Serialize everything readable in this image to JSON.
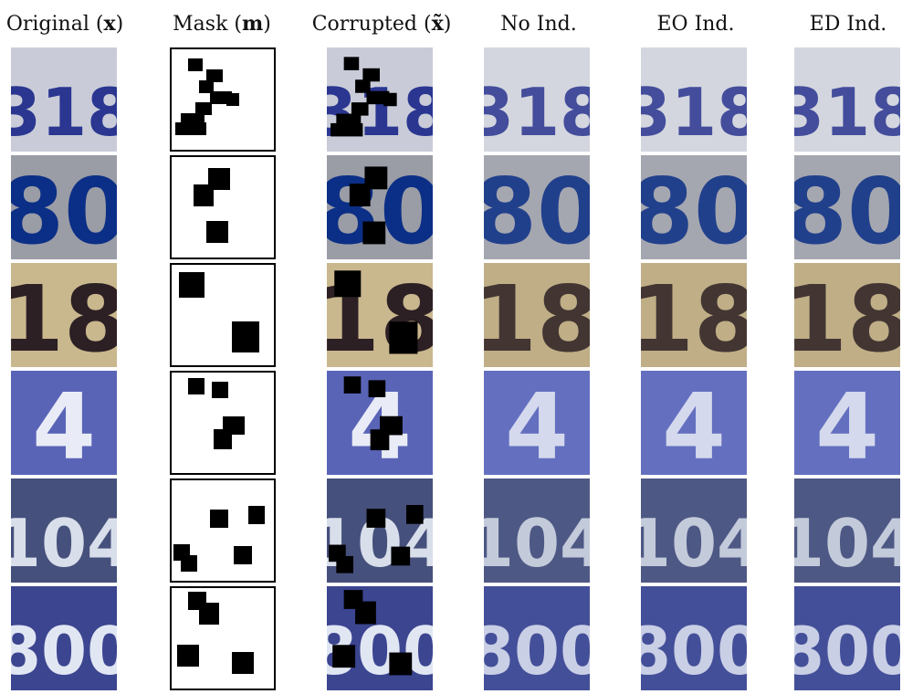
{
  "figure": {
    "columns": [
      {
        "key": "original",
        "label": "Original (",
        "symbol": "x",
        "suffix": ")"
      },
      {
        "key": "mask",
        "label": "Mask (",
        "symbol": "m",
        "suffix": ")"
      },
      {
        "key": "corrupted",
        "label": "Corrupted (",
        "symbol": "x̃",
        "suffix": ")"
      },
      {
        "key": "no_ind",
        "label": "No Ind."
      },
      {
        "key": "eo_ind",
        "label": "EO Ind."
      },
      {
        "key": "ed_ind",
        "label": "ED Ind."
      }
    ],
    "rows": [
      {
        "digits": "318",
        "bg": "#c9ccd8",
        "fg": "#2a3690",
        "tint": "#d4d6df"
      },
      {
        "digits": "80",
        "bg": "#9a9ca6",
        "fg": "#0b2f86",
        "tint": "#a5a7b0"
      },
      {
        "digits": "18",
        "bg": "#c9b78e",
        "fg": "#2d2024",
        "tint": "#bfae86"
      },
      {
        "digits": "4",
        "bg": "#5a64b7",
        "fg": "#e9ecf6",
        "tint": "#6470bf"
      },
      {
        "digits": "104",
        "bg": "#46507c",
        "fg": "#d8deea",
        "tint": "#4e5884"
      },
      {
        "digits": "800",
        "bg": "#3b4590",
        "fg": "#e1e6f3",
        "tint": "#444f99"
      }
    ]
  }
}
